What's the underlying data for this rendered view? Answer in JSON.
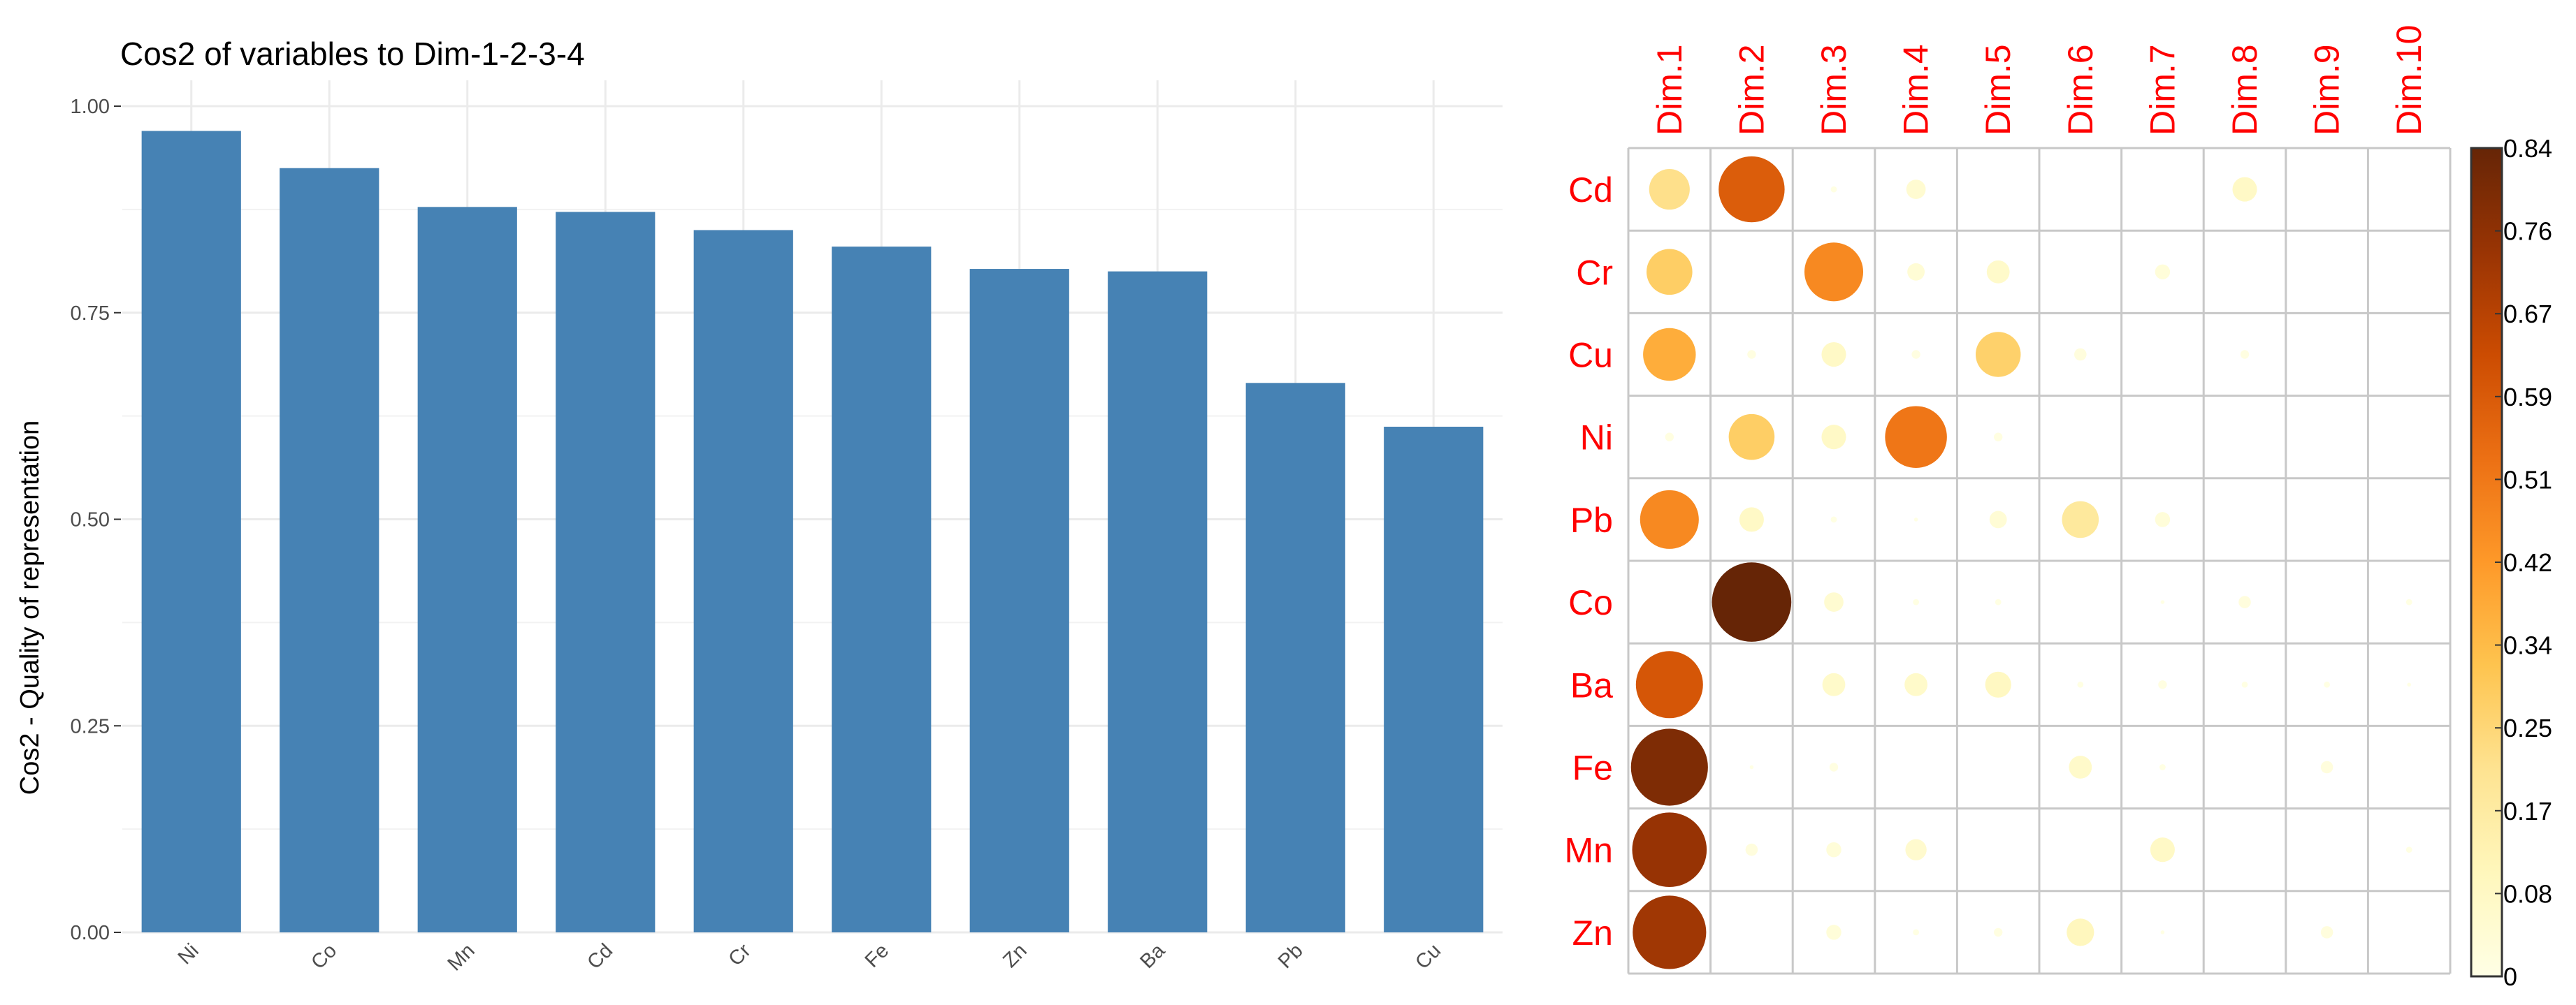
{
  "chart_data": [
    {
      "type": "bar",
      "title": "Cos2 of variables to Dim-1-2-3-4",
      "xlabel": "",
      "ylabel": "Cos2 - Quality of representation",
      "categories": [
        "Ni",
        "Co",
        "Mn",
        "Cd",
        "Cr",
        "Fe",
        "Zn",
        "Ba",
        "Pb",
        "Cu"
      ],
      "values": [
        0.97,
        0.925,
        0.878,
        0.872,
        0.85,
        0.83,
        0.803,
        0.8,
        0.665,
        0.612
      ],
      "ylim": [
        0,
        1.0
      ],
      "yticks": [
        0,
        0.25,
        0.5,
        0.75,
        1.0
      ],
      "ytick_labels": [
        "0.00",
        "0.25",
        "0.50",
        "0.75",
        "1.00"
      ],
      "bar_color": "#4682b4",
      "grid": true
    },
    {
      "type": "heatmap",
      "style": "corrplot-circle",
      "columns": [
        "Dim.1",
        "Dim.2",
        "Dim.3",
        "Dim.4",
        "Dim.5",
        "Dim.6",
        "Dim.7",
        "Dim.8",
        "Dim.9",
        "Dim.10"
      ],
      "rows": [
        "Cd",
        "Cr",
        "Cu",
        "Ni",
        "Pb",
        "Co",
        "Ba",
        "Fe",
        "Mn",
        "Zn"
      ],
      "values": [
        [
          0.22,
          0.58,
          0.005,
          0.05,
          0.0,
          0.0,
          0.0,
          0.08,
          0.0,
          0.0
        ],
        [
          0.28,
          0.0,
          0.46,
          0.04,
          0.07,
          0.0,
          0.03,
          0.0,
          0.0,
          0.0
        ],
        [
          0.37,
          0.01,
          0.08,
          0.01,
          0.27,
          0.02,
          0.0,
          0.01,
          0.0,
          0.0
        ],
        [
          0.01,
          0.28,
          0.08,
          0.51,
          0.01,
          0.0,
          0.0,
          0.0,
          0.0,
          0.0
        ],
        [
          0.46,
          0.08,
          0.005,
          0.002,
          0.04,
          0.18,
          0.03,
          0.0,
          0.0,
          0.0
        ],
        [
          0.0,
          0.84,
          0.05,
          0.005,
          0.005,
          0.0,
          0.002,
          0.02,
          0.0,
          0.005
        ],
        [
          0.6,
          0.0,
          0.07,
          0.07,
          0.09,
          0.005,
          0.01,
          0.005,
          0.005,
          0.002
        ],
        [
          0.79,
          0.002,
          0.01,
          0.0,
          0.0,
          0.07,
          0.005,
          0.0,
          0.02,
          0.0
        ],
        [
          0.74,
          0.02,
          0.03,
          0.06,
          0.0,
          0.0,
          0.08,
          0.0,
          0.0,
          0.005
        ],
        [
          0.72,
          0.0,
          0.03,
          0.005,
          0.01,
          0.1,
          0.002,
          0.0,
          0.02,
          0.0
        ]
      ],
      "colorbar": {
        "min": 0,
        "max": 0.84,
        "ticks": [
          "0",
          "0.08",
          "0.17",
          "0.25",
          "0.34",
          "0.42",
          "0.51",
          "0.59",
          "0.67",
          "0.76",
          "0.84"
        ],
        "colors": [
          "#ffffe5",
          "#fff7bc",
          "#fee391",
          "#fec44f",
          "#fe9929",
          "#ec7014",
          "#cc4c02",
          "#993404",
          "#662506"
        ]
      },
      "label_color": "#ff0000"
    }
  ]
}
